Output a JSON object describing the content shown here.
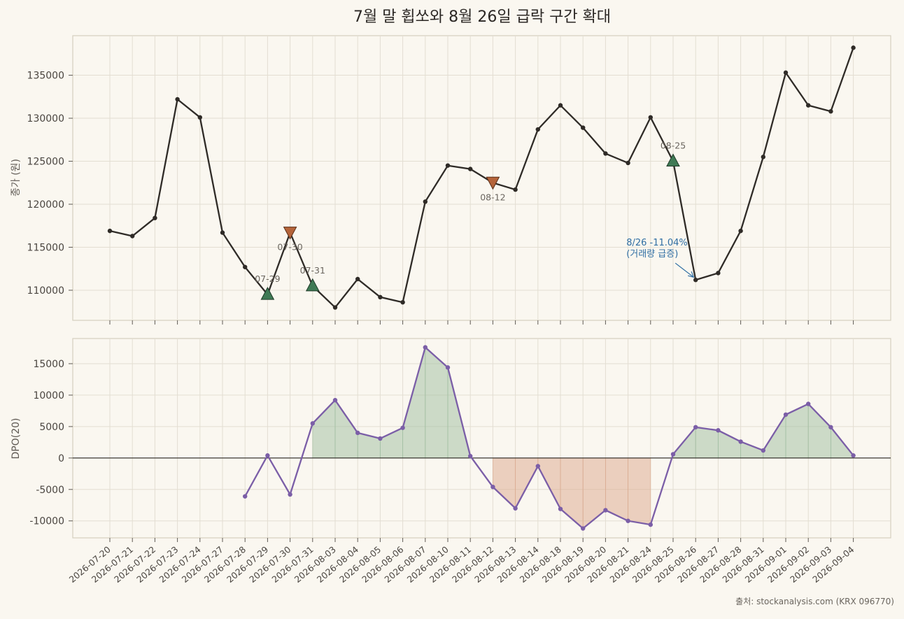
{
  "title": "7월 말 휩쏘와 8월 26일 급락 구간 확대",
  "source": "출처: stockanalysis.com (KRX 096770)",
  "colors": {
    "background": "#faf7f0",
    "price_line": "#2f2b27",
    "dpo_line": "#7b5ea7",
    "buy_marker": "#3f7a55",
    "sell_marker": "#b5643a",
    "fill_positive": "#9dbd9e",
    "fill_negative": "#dba78c",
    "annotation": "#2f6ea3",
    "grid": "#e3ded2",
    "frame": "#d4cfbf"
  },
  "chart_data": [
    {
      "type": "line",
      "panel": "price",
      "ylabel": "종가 (원)",
      "xlabel": "",
      "ylim": [
        106500,
        139600
      ],
      "yticks": [
        110000,
        115000,
        120000,
        125000,
        130000,
        135000
      ],
      "grid": true,
      "categories": [
        "2026-07-20",
        "2026-07-21",
        "2026-07-22",
        "2026-07-23",
        "2026-07-24",
        "2026-07-27",
        "2026-07-28",
        "2026-07-29",
        "2026-07-30",
        "2026-07-31",
        "2026-08-03",
        "2026-08-04",
        "2026-08-05",
        "2026-08-06",
        "2026-08-07",
        "2026-08-10",
        "2026-08-11",
        "2026-08-12",
        "2026-08-13",
        "2026-08-14",
        "2026-08-18",
        "2026-08-19",
        "2026-08-20",
        "2026-08-21",
        "2026-08-24",
        "2026-08-25",
        "2026-08-26",
        "2026-08-27",
        "2026-08-28",
        "2026-08-31",
        "2026-09-01",
        "2026-09-02",
        "2026-09-03",
        "2026-09-04"
      ],
      "series": [
        {
          "values": [
            116900,
            116300,
            118400,
            132200,
            130100,
            116700,
            112700,
            109500,
            116700,
            110500,
            108000,
            111300,
            109200,
            108600,
            120300,
            124500,
            124100,
            122500,
            121700,
            128700,
            131500,
            128900,
            125900,
            124800,
            130100,
            125000,
            111200,
            112000,
            116900,
            125500,
            135300,
            131500,
            130800,
            138200
          ]
        }
      ],
      "markers": [
        {
          "kind": "buy",
          "date": "2026-07-29",
          "label": "07-29",
          "value": 109500
        },
        {
          "kind": "sell",
          "date": "2026-07-30",
          "label": "07-30",
          "value": 116700
        },
        {
          "kind": "buy",
          "date": "2026-07-31",
          "label": "07-31",
          "value": 110500
        },
        {
          "kind": "sell",
          "date": "2026-08-12",
          "label": "08-12",
          "value": 122500
        },
        {
          "kind": "buy",
          "date": "2026-08-25",
          "label": "08-25",
          "value": 125000
        }
      ],
      "annotation": {
        "date": "2026-08-26",
        "value": 111200,
        "line1": "8/26 -11.04%",
        "line2": "(거래량 급증)"
      }
    },
    {
      "type": "area",
      "panel": "dpo",
      "ylabel": "DPO(20)",
      "xlabel": "",
      "ylim": [
        -12700,
        19000
      ],
      "yticks": [
        -10000,
        -5000,
        0,
        5000,
        10000,
        15000
      ],
      "grid": true,
      "categories": [
        "2026-07-28",
        "2026-07-29",
        "2026-07-30",
        "2026-07-31",
        "2026-08-03",
        "2026-08-04",
        "2026-08-05",
        "2026-08-06",
        "2026-08-07",
        "2026-08-10",
        "2026-08-11",
        "2026-08-12",
        "2026-08-13",
        "2026-08-14",
        "2026-08-18",
        "2026-08-19",
        "2026-08-20",
        "2026-08-21",
        "2026-08-24",
        "2026-08-25",
        "2026-08-26",
        "2026-08-27",
        "2026-08-28",
        "2026-08-31",
        "2026-09-01",
        "2026-09-02",
        "2026-09-03",
        "2026-09-04"
      ],
      "series": [
        {
          "values": [
            -6100,
            400,
            -5800,
            5500,
            9200,
            4000,
            3100,
            4800,
            17600,
            14400,
            300,
            -4600,
            -8000,
            -1300,
            -8100,
            -11200,
            -8300,
            -10000,
            -10600,
            600,
            4900,
            4400,
            2600,
            1200,
            6900,
            8600,
            4900,
            400
          ]
        }
      ],
      "baseline": 0
    }
  ]
}
